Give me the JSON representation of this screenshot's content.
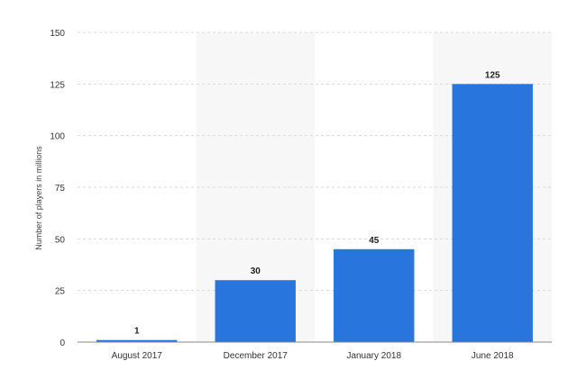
{
  "chart_data": {
    "type": "bar",
    "categories": [
      "August 2017",
      "December 2017",
      "January 2018",
      "June 2018"
    ],
    "values": [
      1,
      30,
      45,
      125
    ],
    "value_labels": [
      "1",
      "30",
      "45",
      "125"
    ],
    "title": "",
    "xlabel": "",
    "ylabel": "Number of players in millions",
    "ylim": [
      0,
      150
    ],
    "yticks": [
      0,
      25,
      50,
      75,
      100,
      125,
      150
    ],
    "grid": true,
    "bar_color": "#2876dd",
    "band_color": "#f7f7f7"
  }
}
